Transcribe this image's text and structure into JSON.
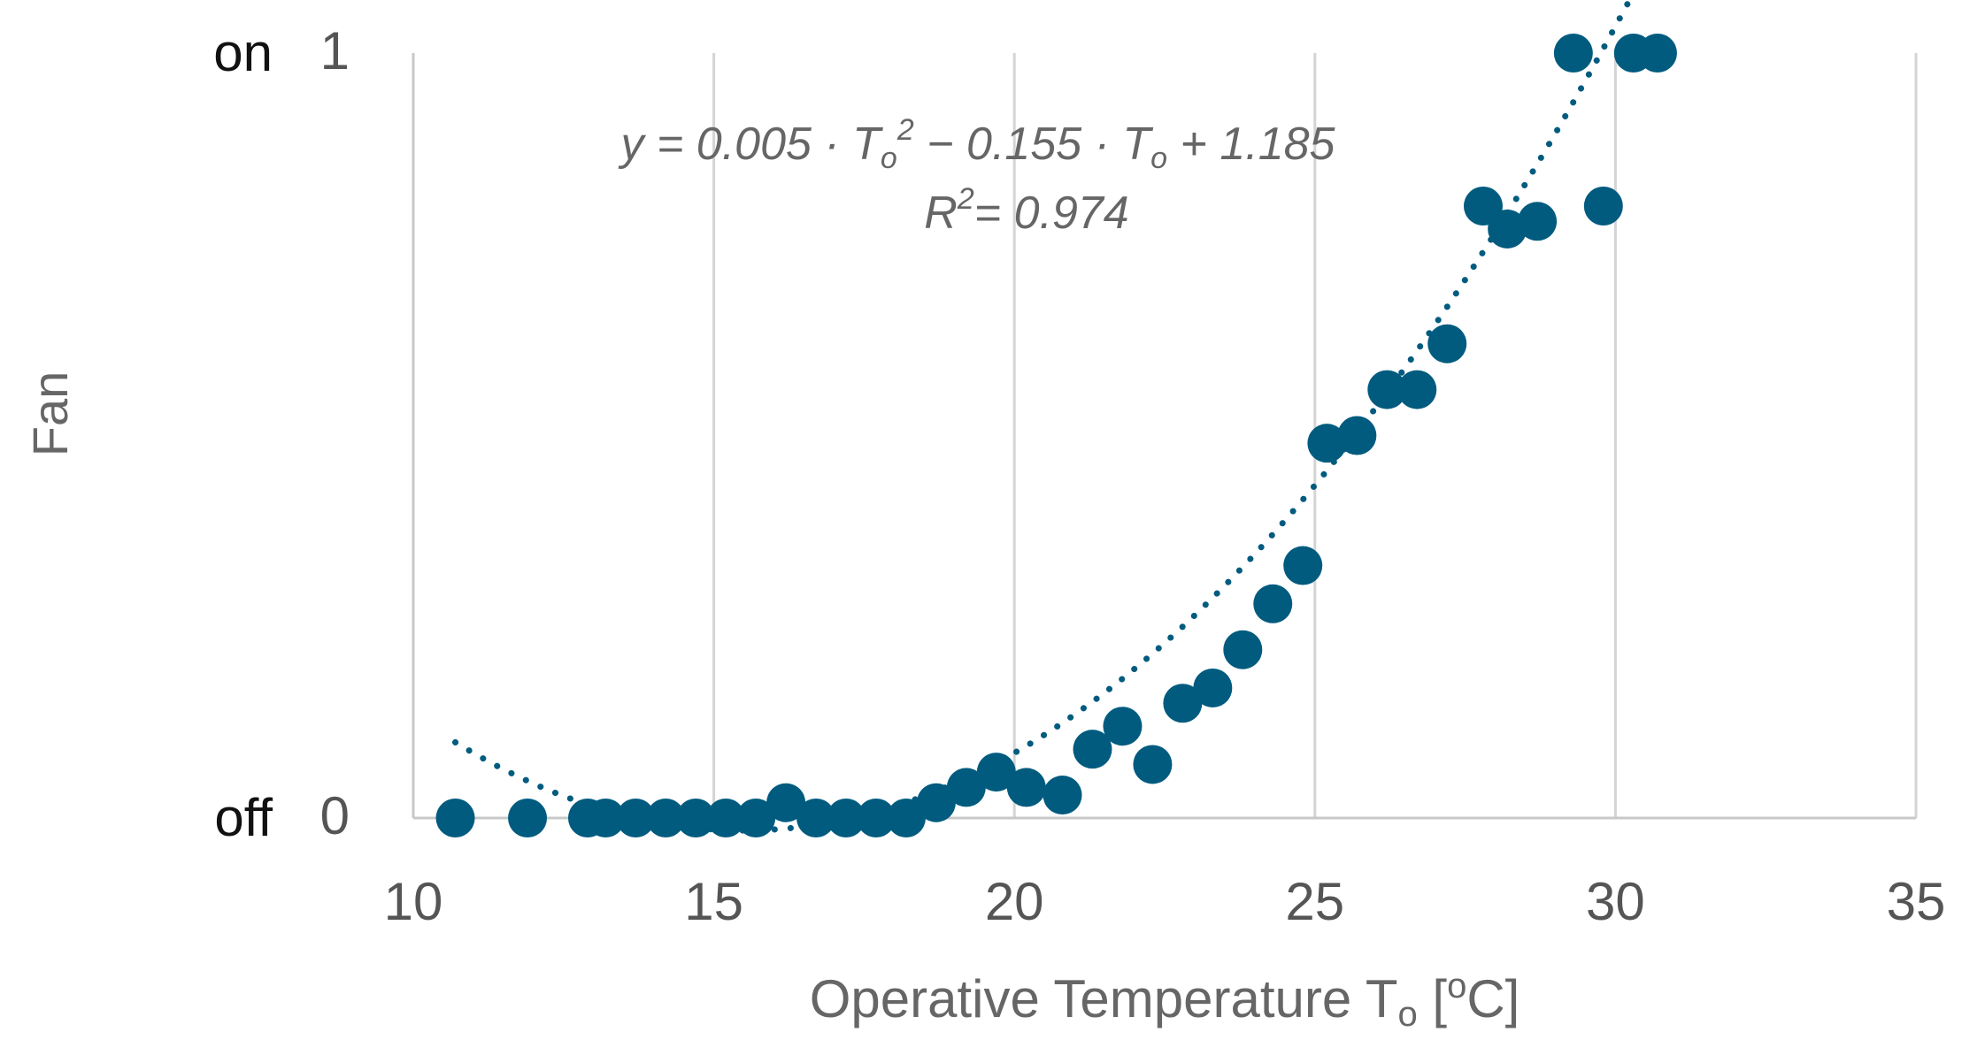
{
  "chart_data": {
    "type": "scatter",
    "xlabel": "Operative Temperature T",
    "xlabel_sub": "o",
    "xlabel_unit_open": " [",
    "xlabel_unit_sup": "o",
    "xlabel_unit_close": "C]",
    "ylabel": "Fan",
    "xlim": [
      10,
      35
    ],
    "ylim": [
      0,
      1
    ],
    "xticks": [
      "10",
      "15",
      "20",
      "25",
      "30",
      "35"
    ],
    "yticks": [
      "0",
      "1"
    ],
    "ystates": {
      "off": "off",
      "on": "on"
    },
    "grid": "vertical",
    "marker_color": "#005b7f",
    "trendline": {
      "type": "polynomial-2",
      "style": "dotted",
      "a": 0.005,
      "b": -0.155,
      "c": 1.185,
      "x_range": [
        10.7,
        30.4
      ]
    },
    "equation": {
      "y_eq": "y = 0.005 · T",
      "sub1": "o",
      "sup": "2",
      "mid": " − 0.155 · T",
      "sub2": "o",
      "end": " + 1.185",
      "r_label": "R",
      "r_sup": "2",
      "r_value": "= 0.974"
    },
    "points": [
      {
        "x": 10.7,
        "y": 0.0
      },
      {
        "x": 11.9,
        "y": 0.0
      },
      {
        "x": 12.9,
        "y": 0.0
      },
      {
        "x": 13.2,
        "y": 0.0
      },
      {
        "x": 13.7,
        "y": 0.0
      },
      {
        "x": 14.2,
        "y": 0.0
      },
      {
        "x": 14.7,
        "y": 0.0
      },
      {
        "x": 15.2,
        "y": 0.0
      },
      {
        "x": 15.7,
        "y": 0.0
      },
      {
        "x": 16.2,
        "y": 0.02
      },
      {
        "x": 16.7,
        "y": 0.0
      },
      {
        "x": 17.2,
        "y": 0.0
      },
      {
        "x": 17.7,
        "y": 0.0
      },
      {
        "x": 18.2,
        "y": 0.0
      },
      {
        "x": 18.7,
        "y": 0.02
      },
      {
        "x": 19.2,
        "y": 0.04
      },
      {
        "x": 19.7,
        "y": 0.06
      },
      {
        "x": 20.2,
        "y": 0.04
      },
      {
        "x": 20.8,
        "y": 0.03
      },
      {
        "x": 21.3,
        "y": 0.09
      },
      {
        "x": 21.8,
        "y": 0.12
      },
      {
        "x": 22.3,
        "y": 0.07
      },
      {
        "x": 22.8,
        "y": 0.15
      },
      {
        "x": 23.3,
        "y": 0.17
      },
      {
        "x": 23.8,
        "y": 0.22
      },
      {
        "x": 24.3,
        "y": 0.28
      },
      {
        "x": 24.8,
        "y": 0.33
      },
      {
        "x": 25.2,
        "y": 0.49
      },
      {
        "x": 25.7,
        "y": 0.5
      },
      {
        "x": 26.2,
        "y": 0.56
      },
      {
        "x": 26.7,
        "y": 0.56
      },
      {
        "x": 27.2,
        "y": 0.62
      },
      {
        "x": 27.8,
        "y": 0.8
      },
      {
        "x": 28.2,
        "y": 0.77
      },
      {
        "x": 28.7,
        "y": 0.78
      },
      {
        "x": 29.3,
        "y": 1.0
      },
      {
        "x": 29.8,
        "y": 0.8
      },
      {
        "x": 30.3,
        "y": 1.0
      },
      {
        "x": 30.7,
        "y": 1.0
      }
    ]
  }
}
